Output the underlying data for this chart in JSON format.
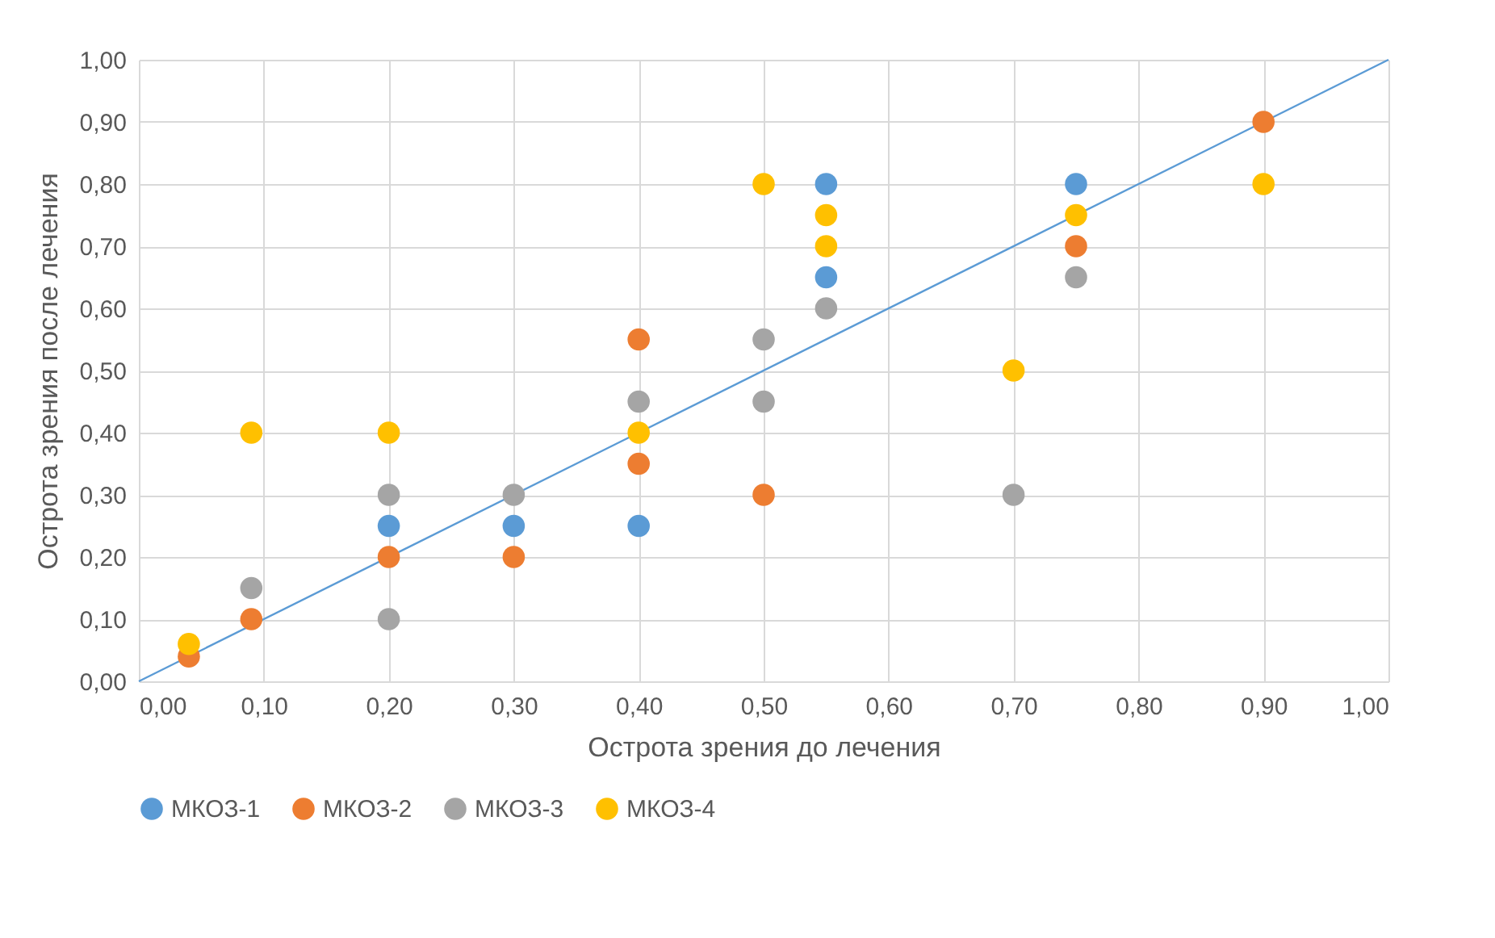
{
  "chart_data": {
    "type": "scatter",
    "xlabel": "Острота зрения до лечения",
    "ylabel": "Острота зрения после лечения",
    "xlim": [
      0,
      1
    ],
    "ylim": [
      0,
      1
    ],
    "xticks": [
      {
        "value": 0,
        "label": "0,00"
      },
      {
        "value": 0.1,
        "label": "0,10"
      },
      {
        "value": 0.2,
        "label": "0,20"
      },
      {
        "value": 0.3,
        "label": "0,30"
      },
      {
        "value": 0.4,
        "label": "0,40"
      },
      {
        "value": 0.5,
        "label": "0,50"
      },
      {
        "value": 0.6,
        "label": "0,60"
      },
      {
        "value": 0.7,
        "label": "0,70"
      },
      {
        "value": 0.8,
        "label": "0,80"
      },
      {
        "value": 0.9,
        "label": "0,90"
      },
      {
        "value": 1,
        "label": "1,00"
      }
    ],
    "yticks": [
      {
        "value": 0,
        "label": "0,00"
      },
      {
        "value": 0.1,
        "label": "0,10"
      },
      {
        "value": 0.2,
        "label": "0,20"
      },
      {
        "value": 0.3,
        "label": "0,30"
      },
      {
        "value": 0.4,
        "label": "0,40"
      },
      {
        "value": 0.5,
        "label": "0,50"
      },
      {
        "value": 0.6,
        "label": "0,60"
      },
      {
        "value": 0.7,
        "label": "0,70"
      },
      {
        "value": 0.8,
        "label": "0,80"
      },
      {
        "value": 0.9,
        "label": "0,90"
      },
      {
        "value": 1,
        "label": "1,00"
      }
    ],
    "grid": true,
    "legend": "bottom",
    "marker": "circle",
    "series": [
      {
        "type": "line",
        "color": "#5b9bd5",
        "marker": "none",
        "x": [
          0,
          1
        ],
        "values": [
          0,
          1
        ]
      },
      {
        "name": "МКОЗ-1",
        "color": "#5b9bd5",
        "x": [
          0.2,
          0.3,
          0.4,
          0.55,
          0.55,
          0.75
        ],
        "values": [
          0.25,
          0.25,
          0.25,
          0.8,
          0.65,
          0.8
        ]
      },
      {
        "name": "МКОЗ-2",
        "color": "#ed7d31",
        "x": [
          0.04,
          0.09,
          0.2,
          0.3,
          0.4,
          0.4,
          0.5,
          0.75,
          0.9
        ],
        "values": [
          0.04,
          0.1,
          0.2,
          0.2,
          0.55,
          0.35,
          0.3,
          0.7,
          0.9
        ]
      },
      {
        "name": "МКОЗ-3",
        "color": "#a5a5a5",
        "x": [
          0.09,
          0.2,
          0.2,
          0.3,
          0.4,
          0.5,
          0.5,
          0.55,
          0.7,
          0.75
        ],
        "values": [
          0.15,
          0.3,
          0.1,
          0.3,
          0.45,
          0.55,
          0.45,
          0.6,
          0.3,
          0.65
        ]
      },
      {
        "name": "МКОЗ-4",
        "color": "#ffc000",
        "x": [
          0.04,
          0.09,
          0.2,
          0.4,
          0.5,
          0.55,
          0.55,
          0.7,
          0.75,
          0.9
        ],
        "values": [
          0.06,
          0.4,
          0.4,
          0.4,
          0.8,
          0.75,
          0.7,
          0.5,
          0.75,
          0.8
        ]
      }
    ]
  }
}
